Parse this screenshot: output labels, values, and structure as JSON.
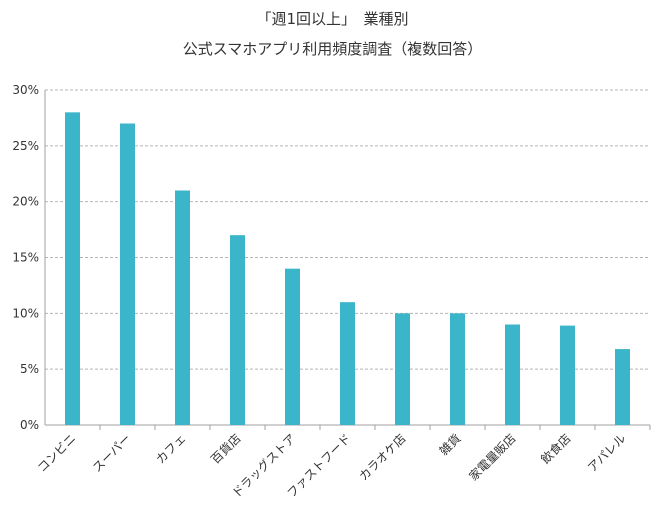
{
  "chart_data": {
    "type": "bar",
    "title_lines": [
      "「週1回以上」　業種別",
      "公式スマホアプリ利用頻度調査（複数回答）"
    ],
    "categories": [
      "コンビニ",
      "スーパー",
      "カフェ",
      "百貨店",
      "ドラッグストア",
      "ファストフード",
      "カラオケ店",
      "雑貨",
      "家電量販店",
      "飲食店",
      "アパレル"
    ],
    "values": [
      28,
      27,
      21,
      17,
      14,
      11,
      10,
      10,
      9,
      8.9,
      6.8
    ],
    "ylim": [
      0,
      30
    ],
    "yticks": [
      0,
      5,
      10,
      15,
      20,
      25,
      30
    ],
    "ytick_labels": [
      "0%",
      "5%",
      "10%",
      "15%",
      "20%",
      "25%",
      "30%"
    ],
    "bar_color": "#3bb5c9",
    "grid": true,
    "grid_style": "dashed",
    "legend": "none"
  }
}
